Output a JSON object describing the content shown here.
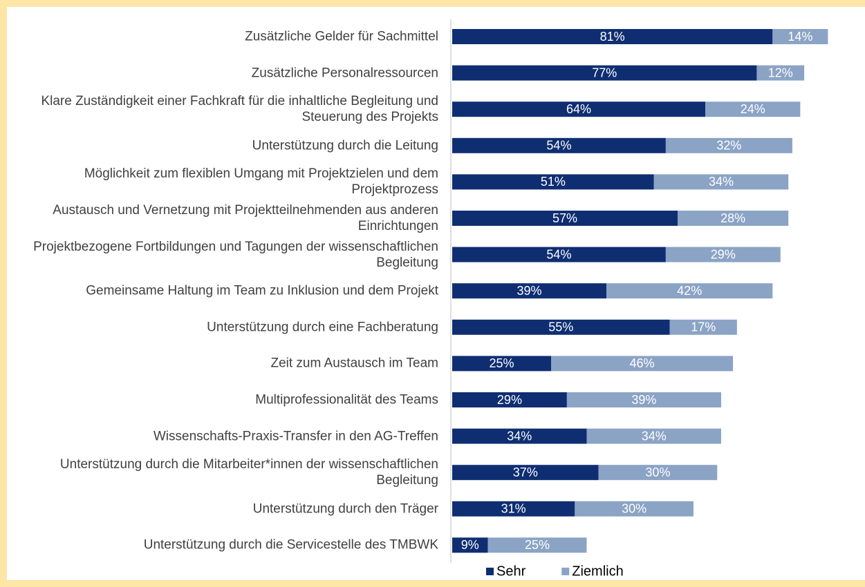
{
  "chart_data": {
    "type": "stacked-bar-horizontal",
    "categories": [
      "Zusätzliche Gelder für Sachmittel",
      "Zusätzliche Personalressourcen",
      "Klare Zuständigkeit einer Fachkraft für die inhaltliche Begleitung und Steuerung des Projekts",
      "Unterstützung durch die Leitung",
      "Möglichkeit zum flexiblen Umgang mit Projektzielen und dem Projektprozess",
      "Austausch und Vernetzung mit Projektteilnehmenden aus anderen Einrichtungen",
      "Projektbezogene Fortbildungen und Tagungen der wissenschaftlichen Begleitung",
      "Gemeinsame Haltung im Team zu Inklusion und dem Projekt",
      "Unterstützung durch eine Fachberatung",
      "Zeit zum Austausch im Team",
      "Multiprofessionalität des Teams",
      "Wissenschafts-Praxis-Transfer in den AG-Treffen",
      "Unterstützung durch die Mitarbeiter*innen der wissenschaftlichen Begleitung",
      "Unterstützung durch den Träger",
      "Unterstützung durch die Servicestelle des TMBWK"
    ],
    "series": [
      {
        "name": "Sehr",
        "color": "#0f2e72",
        "values": [
          81,
          77,
          64,
          54,
          51,
          57,
          54,
          39,
          55,
          25,
          29,
          34,
          37,
          31,
          9
        ],
        "value_labels": [
          "81%",
          "77%",
          "64%",
          "54%",
          "51%",
          "57%",
          "54%",
          "39%",
          "55%",
          "25%",
          "29%",
          "34%",
          "37%",
          "31%",
          "9%"
        ]
      },
      {
        "name": "Ziemlich",
        "color": "#8ba3c5",
        "values": [
          14,
          12,
          24,
          32,
          34,
          28,
          29,
          42,
          17,
          46,
          39,
          34,
          30,
          30,
          25
        ],
        "value_labels": [
          "14%",
          "12%",
          "24%",
          "32%",
          "34%",
          "28%",
          "29%",
          "42%",
          "17%",
          "46%",
          "39%",
          "34%",
          "30%",
          "30%",
          "25%"
        ]
      }
    ],
    "legend": "bottom"
  }
}
